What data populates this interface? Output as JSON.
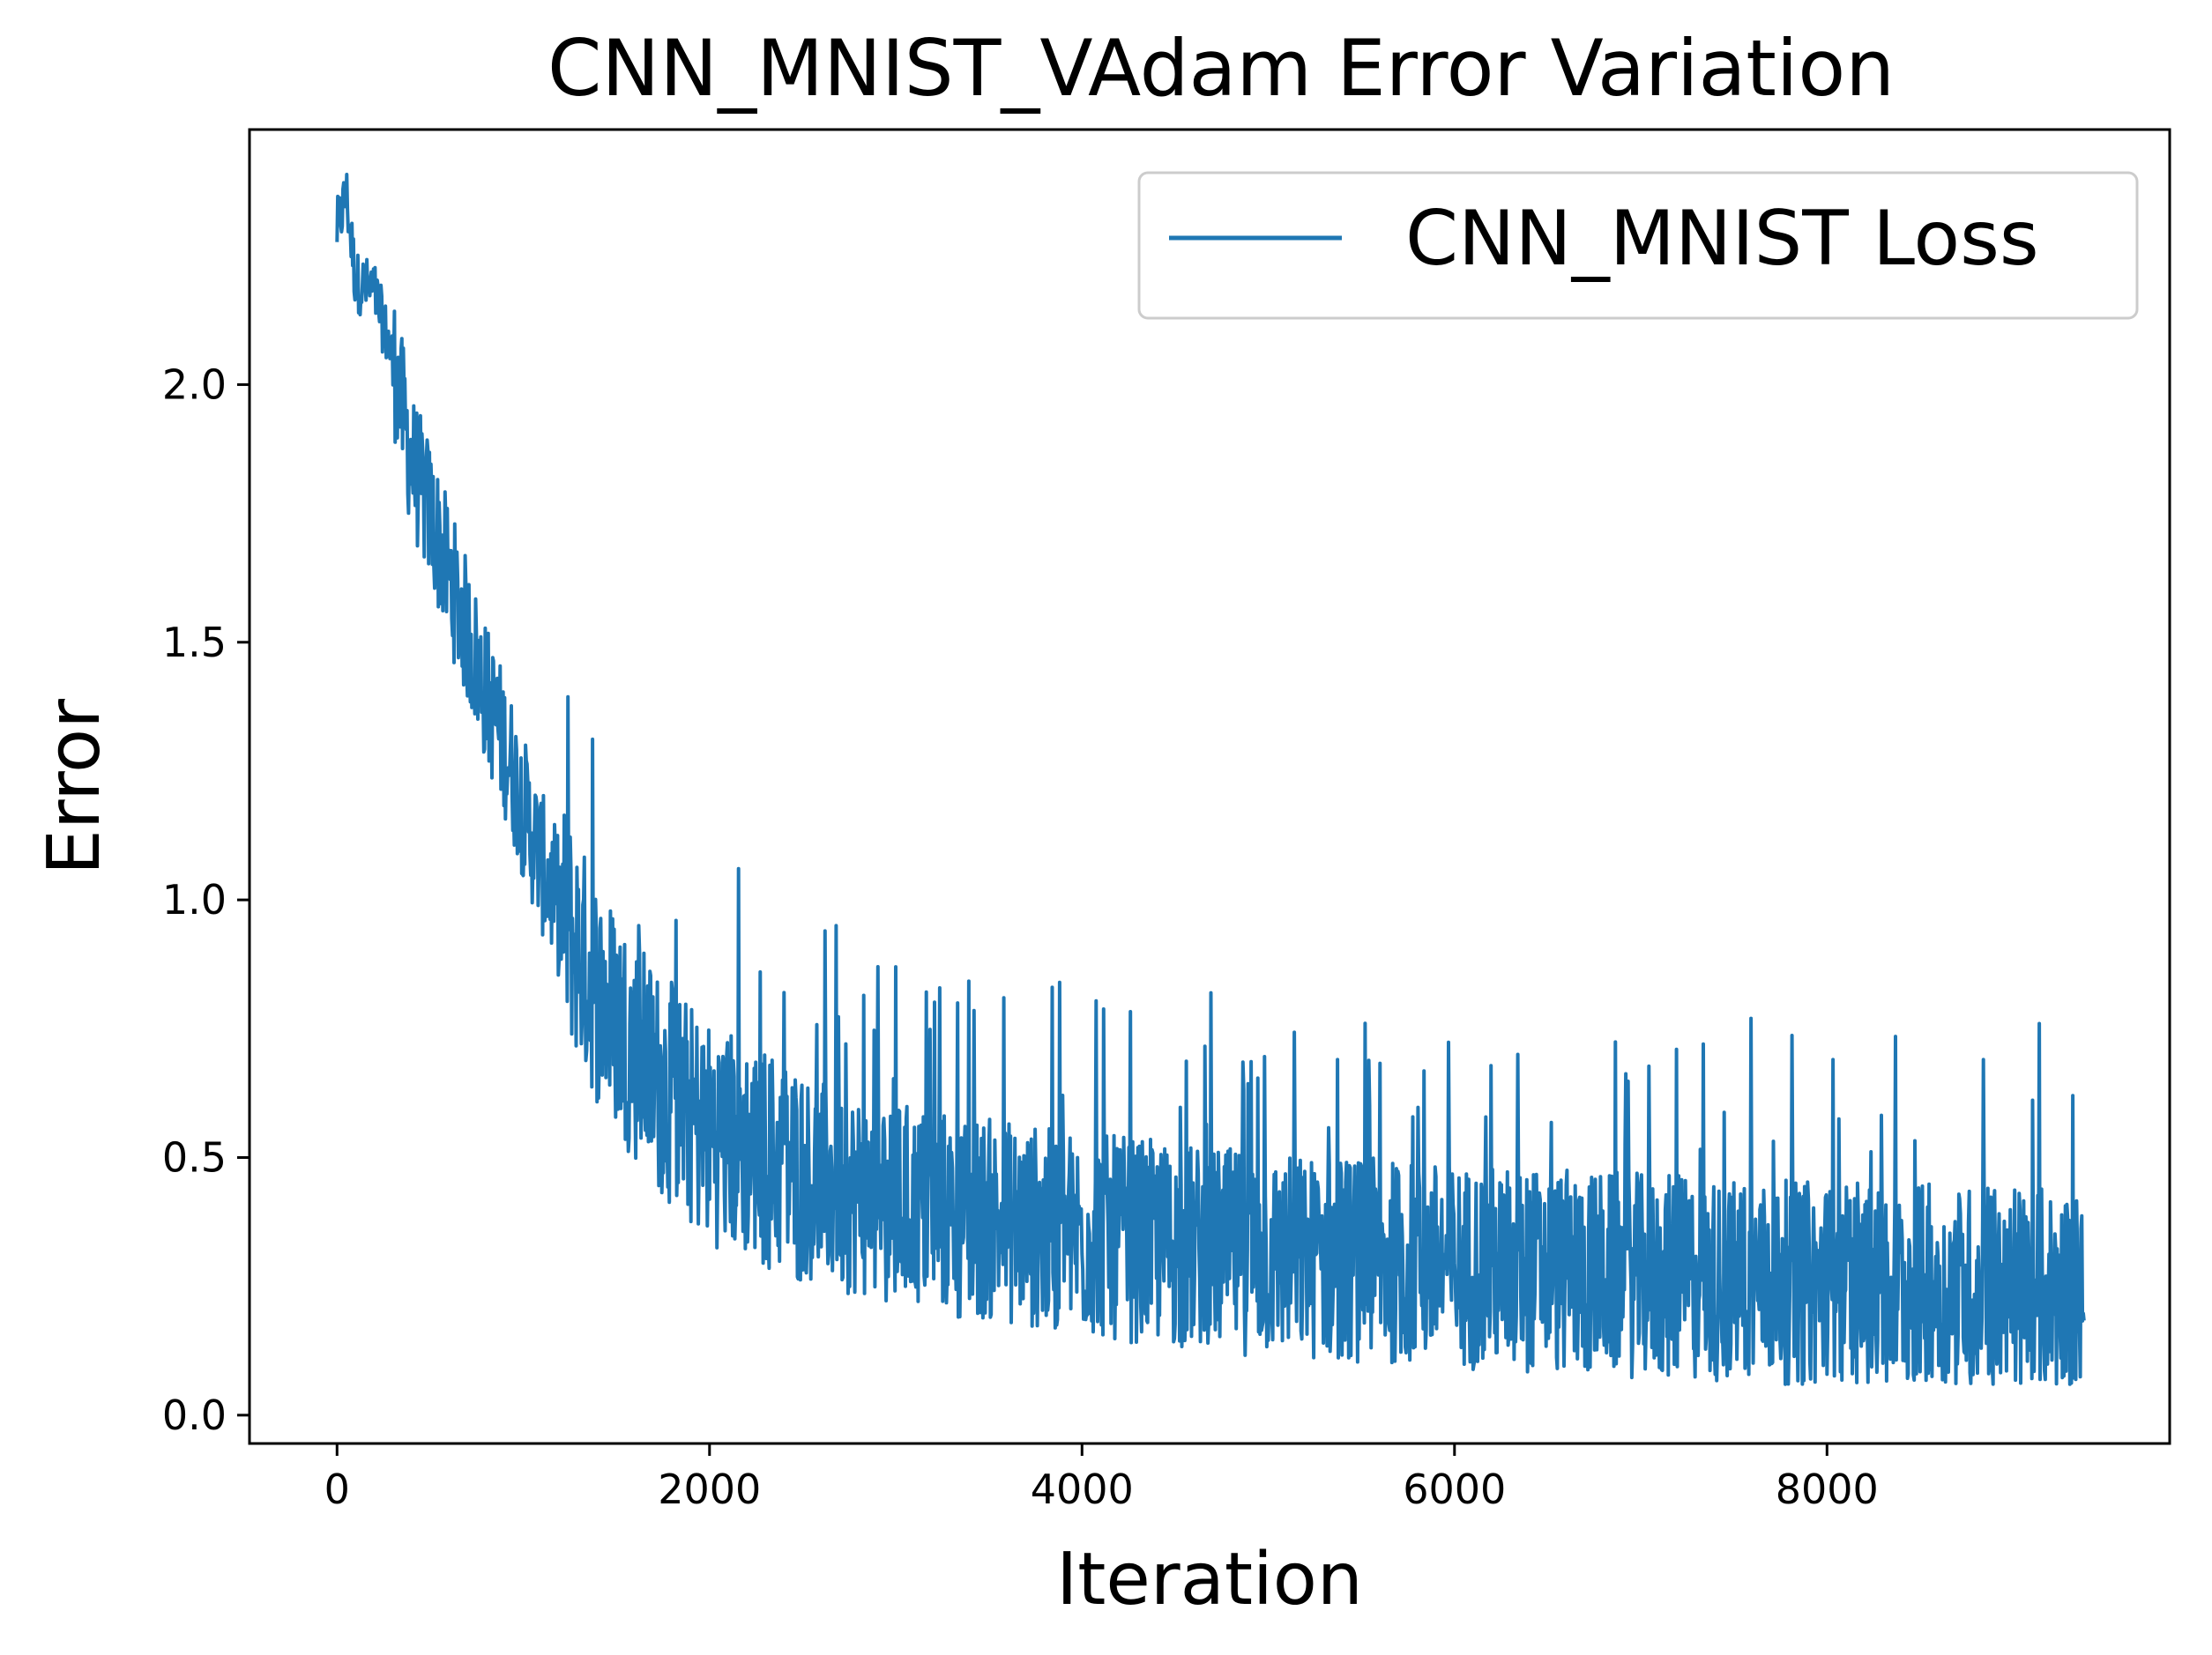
{
  "chart_data": {
    "type": "line",
    "title": "CNN_MNIST_VAdam Error Variation",
    "xlabel": "Iteration",
    "ylabel": "Error",
    "xlim": [
      -470,
      9840
    ],
    "ylim": [
      -0.055,
      2.495
    ],
    "xticks": [
      0,
      2000,
      4000,
      6000,
      8000
    ],
    "xtick_labels": [
      "0",
      "2000",
      "4000",
      "6000",
      "8000"
    ],
    "yticks": [
      0.0,
      0.5,
      1.0,
      1.5,
      2.0
    ],
    "ytick_labels": [
      "0.0",
      "0.5",
      "1.0",
      "1.5",
      "2.0"
    ],
    "grid": false,
    "legend": {
      "position": "top-right",
      "entries": [
        "CNN_MNIST Loss"
      ]
    },
    "colors": {
      "series": "#1f77b4",
      "axes": "#000000",
      "legend_border": "#cccccc"
    },
    "series": [
      {
        "name": "CNN_MNIST Loss",
        "x_start": 0,
        "x_end": 9380,
        "description_points": [
          {
            "x": 0,
            "y": 2.3
          },
          {
            "x": 50,
            "y": 2.37
          },
          {
            "x": 100,
            "y": 2.2
          },
          {
            "x": 200,
            "y": 2.18
          },
          {
            "x": 300,
            "y": 2.05
          },
          {
            "x": 400,
            "y": 1.85
          },
          {
            "x": 500,
            "y": 1.75
          },
          {
            "x": 600,
            "y": 1.63
          },
          {
            "x": 700,
            "y": 1.52
          },
          {
            "x": 800,
            "y": 1.4
          },
          {
            "x": 900,
            "y": 1.3
          },
          {
            "x": 1000,
            "y": 1.18
          },
          {
            "x": 1100,
            "y": 1.07
          },
          {
            "x": 1200,
            "y": 0.98
          },
          {
            "x": 1300,
            "y": 0.9
          },
          {
            "x": 1400,
            "y": 0.82
          },
          {
            "x": 1500,
            "y": 0.77
          },
          {
            "x": 1600,
            "y": 0.71
          },
          {
            "x": 1700,
            "y": 0.66
          },
          {
            "x": 1800,
            "y": 0.62
          },
          {
            "x": 1900,
            "y": 0.58
          },
          {
            "x": 2000,
            "y": 0.55
          },
          {
            "x": 2200,
            "y": 0.52
          },
          {
            "x": 2400,
            "y": 0.48
          },
          {
            "x": 2600,
            "y": 0.45
          },
          {
            "x": 2800,
            "y": 0.43
          },
          {
            "x": 3000,
            "y": 0.41
          },
          {
            "x": 3500,
            "y": 0.38
          },
          {
            "x": 4000,
            "y": 0.35
          },
          {
            "x": 4500,
            "y": 0.33
          },
          {
            "x": 5000,
            "y": 0.31
          },
          {
            "x": 5500,
            "y": 0.3
          },
          {
            "x": 6000,
            "y": 0.29
          },
          {
            "x": 6500,
            "y": 0.28
          },
          {
            "x": 7000,
            "y": 0.27
          },
          {
            "x": 7500,
            "y": 0.26
          },
          {
            "x": 8000,
            "y": 0.255
          },
          {
            "x": 8500,
            "y": 0.25
          },
          {
            "x": 9000,
            "y": 0.245
          },
          {
            "x": 9380,
            "y": 0.24
          }
        ],
        "spikes": [
          {
            "x": 2680,
            "y": 0.95
          },
          {
            "x": 3000,
            "y": 0.87
          },
          {
            "x": 3880,
            "y": 0.84
          },
          {
            "x": 1820,
            "y": 0.96
          },
          {
            "x": 1620,
            "y": 0.95
          },
          {
            "x": 2270,
            "y": 0.86
          },
          {
            "x": 3330,
            "y": 0.8
          },
          {
            "x": 3580,
            "y": 0.81
          },
          {
            "x": 7590,
            "y": 0.77
          },
          {
            "x": 9140,
            "y": 0.76
          },
          {
            "x": 8030,
            "y": 0.69
          },
          {
            "x": 6340,
            "y": 0.7
          },
          {
            "x": 5370,
            "y": 0.69
          },
          {
            "x": 7190,
            "y": 0.71
          },
          {
            "x": 8840,
            "y": 0.69
          },
          {
            "x": 9320,
            "y": 0.62
          }
        ]
      }
    ]
  }
}
